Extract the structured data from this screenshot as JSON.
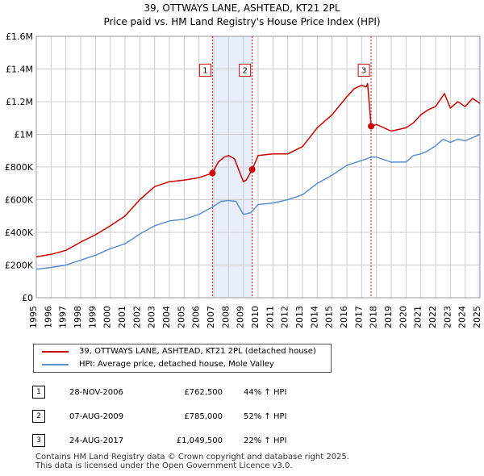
{
  "title_line1": "39, OTTWAYS LANE, ASHTEAD, KT21 2PL",
  "title_line2": "Price paid vs. HM Land Registry's House Price Index (HPI)",
  "chart_data": {
    "type": "line",
    "title": "39, OTTWAYS LANE, ASHTEAD, KT21 2PL Price paid vs. HM Land Registry's House Price Index (HPI)",
    "xlabel": "",
    "ylabel": "",
    "xlim": [
      1995,
      2025
    ],
    "ylim": [
      0,
      1600000
    ],
    "y_ticks": [
      0,
      200000,
      400000,
      600000,
      800000,
      1000000,
      1200000,
      1400000,
      1600000
    ],
    "y_tick_labels": [
      "£0",
      "£200K",
      "£400K",
      "£600K",
      "£800K",
      "£1M",
      "£1.2M",
      "£1.4M",
      "£1.6M"
    ],
    "x_ticks": [
      1995,
      1996,
      1997,
      1998,
      1999,
      2000,
      2001,
      2002,
      2003,
      2004,
      2005,
      2006,
      2007,
      2008,
      2009,
      2010,
      2011,
      2012,
      2013,
      2014,
      2015,
      2016,
      2017,
      2018,
      2019,
      2020,
      2021,
      2022,
      2023,
      2024,
      2025
    ],
    "x_tick_labels": [
      "1995",
      "1996",
      "1997",
      "1998",
      "1999",
      "2000",
      "2001",
      "2002",
      "2003",
      "2004",
      "2005",
      "2006",
      "2007",
      "2008",
      "2009",
      "2010",
      "2011",
      "2012",
      "2013",
      "2014",
      "2015",
      "2016",
      "2017",
      "2018",
      "2019",
      "2020",
      "2021",
      "2022",
      "2023",
      "2024",
      "2025"
    ],
    "grid": true,
    "colors": {
      "property": "#cc0000",
      "hpi": "#5b8fd0",
      "shade": "#e8eefa",
      "vline": "#cc0000",
      "grid": "#cccccc"
    },
    "shaded_ranges": [
      [
        2006.91,
        2009.6
      ],
      [
        2024.83,
        2025.0
      ]
    ],
    "series": [
      {
        "name": "39, OTTWAYS LANE, ASHTEAD, KT21 2PL (detached house)",
        "x": [
          1995,
          1996,
          1997,
          1998,
          1999,
          2000,
          2001,
          2002,
          2003,
          2004,
          2005,
          2006,
          2006.91,
          2007.3,
          2007.7,
          2008,
          2008.4,
          2008.7,
          2009,
          2009.2,
          2009.6,
          2010,
          2011,
          2012,
          2013,
          2014,
          2015,
          2016,
          2016.5,
          2017,
          2017.3,
          2017.4,
          2017.64,
          2018,
          2019,
          2020,
          2020.5,
          2021,
          2021.5,
          2022,
          2022.3,
          2022.6,
          2023,
          2023.5,
          2024,
          2024.5,
          2025
        ],
        "values": [
          250000,
          265000,
          290000,
          340000,
          385000,
          440000,
          500000,
          600000,
          680000,
          710000,
          720000,
          735000,
          762500,
          830000,
          860000,
          870000,
          850000,
          780000,
          710000,
          720000,
          785000,
          870000,
          880000,
          880000,
          925000,
          1040000,
          1120000,
          1230000,
          1280000,
          1300000,
          1290000,
          1310000,
          1049500,
          1060000,
          1020000,
          1040000,
          1070000,
          1120000,
          1150000,
          1170000,
          1210000,
          1250000,
          1160000,
          1200000,
          1170000,
          1220000,
          1190000
        ]
      },
      {
        "name": "HPI: Average price, detached house, Mole Valley",
        "x": [
          1995,
          1996,
          1997,
          1998,
          1999,
          2000,
          2001,
          2002,
          2003,
          2004,
          2005,
          2006,
          2007,
          2007.5,
          2008,
          2008.5,
          2009,
          2009.5,
          2010,
          2011,
          2012,
          2013,
          2014,
          2015,
          2016,
          2017,
          2017.64,
          2018,
          2019,
          2020,
          2020.5,
          2021,
          2021.5,
          2022,
          2022.5,
          2023,
          2023.5,
          2024,
          2024.5,
          2025
        ],
        "values": [
          175000,
          185000,
          200000,
          230000,
          260000,
          300000,
          330000,
          390000,
          440000,
          470000,
          480000,
          510000,
          560000,
          590000,
          595000,
          590000,
          510000,
          520000,
          570000,
          580000,
          600000,
          630000,
          700000,
          750000,
          810000,
          840000,
          860000,
          860000,
          830000,
          830000,
          870000,
          880000,
          900000,
          930000,
          970000,
          950000,
          970000,
          960000,
          980000,
          1000000
        ]
      }
    ],
    "sales": [
      {
        "label": "1",
        "x": 2006.91,
        "value": 762500
      },
      {
        "label": "2",
        "x": 2009.6,
        "value": 785000
      },
      {
        "label": "3",
        "x": 2017.64,
        "value": 1049500
      }
    ],
    "marker_box_value": 1390000
  },
  "legend": {
    "property_label": "39, OTTWAYS LANE, ASHTEAD, KT21 2PL (detached house)",
    "hpi_label": "HPI: Average price, detached house, Mole Valley"
  },
  "sales_table": [
    {
      "num": "1",
      "date": "28-NOV-2006",
      "price": "£762,500",
      "hpi": "44% ↑ HPI"
    },
    {
      "num": "2",
      "date": "07-AUG-2009",
      "price": "£785,000",
      "hpi": "52% ↑ HPI"
    },
    {
      "num": "3",
      "date": "24-AUG-2017",
      "price": "£1,049,500",
      "hpi": "22% ↑ HPI"
    }
  ],
  "footer_line1": "Contains HM Land Registry data © Crown copyright and database right 2025.",
  "footer_line2": "This data is licensed under the Open Government Licence v3.0."
}
